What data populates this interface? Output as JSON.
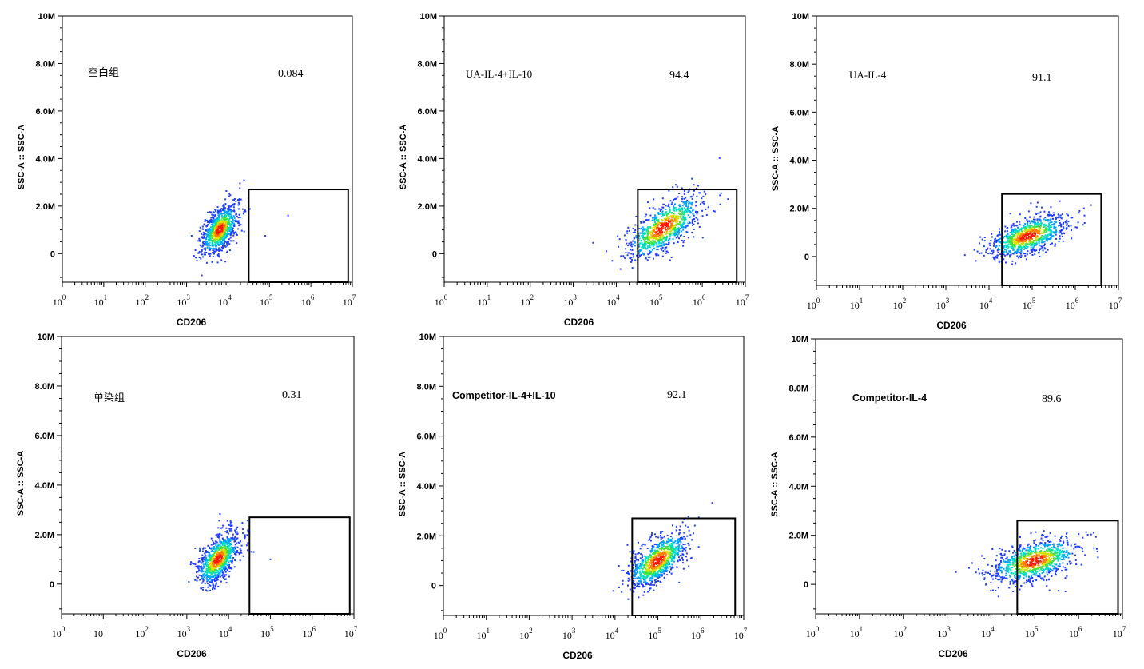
{
  "chart_data": [
    {
      "type": "scatter",
      "title": "空白组",
      "title_style": "serif",
      "xlabel": "CD206",
      "ylabel": "SSC-A :: SSC-A",
      "xscale": "log",
      "xlim_log10": [
        0,
        7
      ],
      "ylim_millions": [
        -1.2,
        10
      ],
      "x_tick_labels": [
        "10^0",
        "10^1",
        "10^2",
        "10^3",
        "10^4",
        "10^5",
        "10^6",
        "10^7"
      ],
      "y_tick_labels": [
        "10M",
        "8.0M",
        "6.0M",
        "4.0M",
        "2.0M",
        "0"
      ],
      "y_tick_values_millions": [
        10,
        8,
        6,
        4,
        2,
        0
      ],
      "gate": {
        "label": "0.084",
        "x_range_log10": [
          4.5,
          6.9
        ],
        "y_range_millions": [
          -1.2,
          2.7
        ]
      },
      "cluster": {
        "center_log10": 3.8,
        "center_ssc_millions": 1.0,
        "spread_log10": 0.22,
        "spread_ssc_millions": 0.45,
        "slope": 1.3
      },
      "outliers": [
        [
          5.45,
          1.6
        ],
        [
          4.9,
          0.75
        ]
      ]
    },
    {
      "type": "scatter",
      "title": "UA-IL-4+IL-10",
      "title_style": "serif",
      "xlabel": "CD206",
      "ylabel": "SSC-A :: SSC-A",
      "xscale": "log",
      "xlim_log10": [
        0,
        7
      ],
      "ylim_millions": [
        -1.2,
        10
      ],
      "x_tick_labels": [
        "10^0",
        "10^1",
        "10^2",
        "10^3",
        "10^4",
        "10^5",
        "10^6",
        "10^7"
      ],
      "y_tick_labels": [
        "10M",
        "8.0M",
        "6.0M",
        "4.0M",
        "2.0M",
        "0"
      ],
      "y_tick_values_millions": [
        10,
        8,
        6,
        4,
        2,
        0
      ],
      "gate": {
        "label": "94.4",
        "x_range_log10": [
          4.5,
          6.8
        ],
        "y_range_millions": [
          -1.2,
          2.7
        ]
      },
      "cluster": {
        "center_log10": 5.1,
        "center_ssc_millions": 1.1,
        "spread_log10": 0.45,
        "spread_ssc_millions": 0.5,
        "slope": 1.1
      },
      "outliers": []
    },
    {
      "type": "scatter",
      "title": "UA-IL-4",
      "title_style": "serif",
      "xlabel": "CD206",
      "ylabel": "SSC-A :: SSC-A",
      "xscale": "log",
      "xlim_log10": [
        0,
        7
      ],
      "ylim_millions": [
        -1.2,
        10
      ],
      "x_tick_labels": [
        "10^0",
        "10^1",
        "10^2",
        "10^3",
        "10^4",
        "10^5",
        "10^6",
        "10^7"
      ],
      "y_tick_labels": [
        "10M",
        "8.0M",
        "6.0M",
        "4.0M",
        "2.0M",
        "0"
      ],
      "y_tick_values_millions": [
        10,
        8,
        6,
        4,
        2,
        0
      ],
      "gate": {
        "label": "91.1",
        "x_range_log10": [
          4.3,
          6.6
        ],
        "y_range_millions": [
          -1.2,
          2.6
        ]
      },
      "cluster": {
        "center_log10": 4.9,
        "center_ssc_millions": 0.85,
        "spread_log10": 0.45,
        "spread_ssc_millions": 0.38,
        "slope": 0.55
      },
      "outliers": [
        [
          6.2,
          2.0
        ]
      ]
    },
    {
      "type": "scatter",
      "title": "单染组",
      "title_style": "serif",
      "xlabel": "CD206",
      "ylabel": "SSC-A :: SSC-A",
      "xscale": "log",
      "xlim_log10": [
        0,
        7
      ],
      "ylim_millions": [
        -1.2,
        10
      ],
      "x_tick_labels": [
        "10^0",
        "10^1",
        "10^2",
        "10^3",
        "10^4",
        "10^5",
        "10^6",
        "10^7"
      ],
      "y_tick_labels": [
        "10M",
        "8.0M",
        "6.0M",
        "4.0M",
        "2.0M",
        "0"
      ],
      "y_tick_values_millions": [
        10,
        8,
        6,
        4,
        2,
        0
      ],
      "gate": {
        "label": "0.31",
        "x_range_log10": [
          4.5,
          6.9
        ],
        "y_range_millions": [
          -1.2,
          2.7
        ]
      },
      "cluster": {
        "center_log10": 3.75,
        "center_ssc_millions": 1.0,
        "spread_log10": 0.25,
        "spread_ssc_millions": 0.45,
        "slope": 1.3
      },
      "outliers": [
        [
          5.0,
          1.0
        ],
        [
          4.6,
          1.3
        ]
      ]
    },
    {
      "type": "scatter",
      "title": "Competitor-IL-4+IL-10",
      "title_style": "bold",
      "xlabel": "CD206",
      "ylabel": "SSC-A :: SSC-A",
      "xscale": "log",
      "xlim_log10": [
        0,
        7
      ],
      "ylim_millions": [
        -1.2,
        10
      ],
      "x_tick_labels": [
        "10^0",
        "10^1",
        "10^2",
        "10^3",
        "10^4",
        "10^5",
        "10^6",
        "10^7"
      ],
      "y_tick_labels": [
        "10M",
        "8.0M",
        "6.0M",
        "4.0M",
        "2.0M",
        "0"
      ],
      "y_tick_values_millions": [
        10,
        8,
        6,
        4,
        2,
        0
      ],
      "gate": {
        "label": "92.1",
        "x_range_log10": [
          4.4,
          6.8
        ],
        "y_range_millions": [
          -1.2,
          2.7
        ]
      },
      "cluster": {
        "center_log10": 5.0,
        "center_ssc_millions": 1.0,
        "spread_log10": 0.35,
        "spread_ssc_millions": 0.45,
        "slope": 1.1
      },
      "outliers": []
    },
    {
      "type": "scatter",
      "title": "Competitor-IL-4",
      "title_style": "bold",
      "xlabel": "CD206",
      "ylabel": "SSC-A :: SSC-A",
      "xscale": "log",
      "xlim_log10": [
        0,
        7
      ],
      "ylim_millions": [
        -1.2,
        10
      ],
      "x_tick_labels": [
        "10^0",
        "10^1",
        "10^2",
        "10^3",
        "10^4",
        "10^5",
        "10^6",
        "10^7"
      ],
      "y_tick_labels": [
        "10M",
        "8.0M",
        "6.0M",
        "4.0M",
        "2.0M",
        "0"
      ],
      "y_tick_values_millions": [
        10,
        8,
        6,
        4,
        2,
        0
      ],
      "gate": {
        "label": "89.6",
        "x_range_log10": [
          4.6,
          6.9
        ],
        "y_range_millions": [
          -1.2,
          2.6
        ]
      },
      "cluster": {
        "center_log10": 5.0,
        "center_ssc_millions": 0.95,
        "spread_log10": 0.5,
        "spread_ssc_millions": 0.42,
        "slope": 0.45
      },
      "outliers": [
        [
          3.2,
          0.5
        ]
      ]
    }
  ],
  "colors": {
    "density": [
      "#1f3cff",
      "#00a0ff",
      "#00e0c0",
      "#40e040",
      "#d8e000",
      "#ff8000",
      "#ff1a00"
    ],
    "axis": "#000000",
    "gate": "#000000"
  }
}
